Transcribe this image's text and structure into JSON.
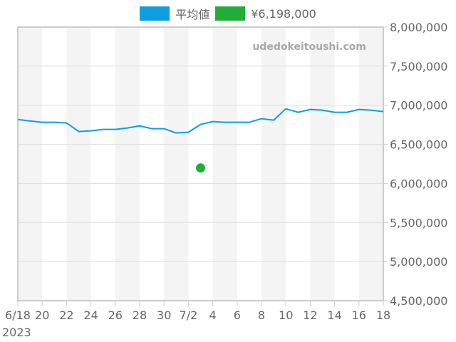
{
  "legend": {
    "items": [
      {
        "label": "平均値",
        "color": "#0b9fe0"
      },
      {
        "label": "¥6,198,000",
        "color": "#22ad38"
      }
    ]
  },
  "watermark": "udedokeitoushi.com",
  "chart_data": {
    "type": "line",
    "title": "",
    "xlabel": "",
    "ylabel": "",
    "ylim": [
      4500000,
      8000000
    ],
    "y_ticks": [
      "8,000,000",
      "7,500,000",
      "7,000,000",
      "6,500,000",
      "6,000,000",
      "5,500,000",
      "5,000,000",
      "4,500,000"
    ],
    "y_tick_values": [
      8000000,
      7500000,
      7000000,
      6500000,
      6000000,
      5500000,
      5000000,
      4500000
    ],
    "x_ticks": [
      "6/18",
      "20",
      "22",
      "24",
      "26",
      "28",
      "30",
      "7/2",
      "4",
      "6",
      "8",
      "10",
      "12",
      "14",
      "16",
      "18"
    ],
    "x_year_label": "2023",
    "grid": true,
    "alternating_column_bands": true,
    "legend_position": "top",
    "x": [
      "2023-06-18",
      "2023-06-19",
      "2023-06-20",
      "2023-06-21",
      "2023-06-22",
      "2023-06-23",
      "2023-06-24",
      "2023-06-25",
      "2023-06-26",
      "2023-06-27",
      "2023-06-28",
      "2023-06-29",
      "2023-06-30",
      "2023-07-01",
      "2023-07-02",
      "2023-07-03",
      "2023-07-04",
      "2023-07-05",
      "2023-07-06",
      "2023-07-07",
      "2023-07-08",
      "2023-07-09",
      "2023-07-10",
      "2023-07-11",
      "2023-07-12",
      "2023-07-13",
      "2023-07-14",
      "2023-07-15",
      "2023-07-16",
      "2023-07-17",
      "2023-07-18"
    ],
    "series": [
      {
        "name": "平均値",
        "color": "#0b9fe0",
        "type": "line",
        "values": [
          6818000,
          6800000,
          6782000,
          6782000,
          6773000,
          6664000,
          6673000,
          6691000,
          6691000,
          6709000,
          6737000,
          6700000,
          6700000,
          6646000,
          6655000,
          6755000,
          6791000,
          6782000,
          6782000,
          6782000,
          6828000,
          6810000,
          6955000,
          6910000,
          6946000,
          6937000,
          6910000,
          6910000,
          6946000,
          6937000,
          6919000
        ]
      },
      {
        "name": "¥6,198,000",
        "color": "#22ad38",
        "type": "scatter",
        "points": [
          {
            "x": "2023-07-03",
            "y": 6198000
          }
        ]
      }
    ]
  }
}
